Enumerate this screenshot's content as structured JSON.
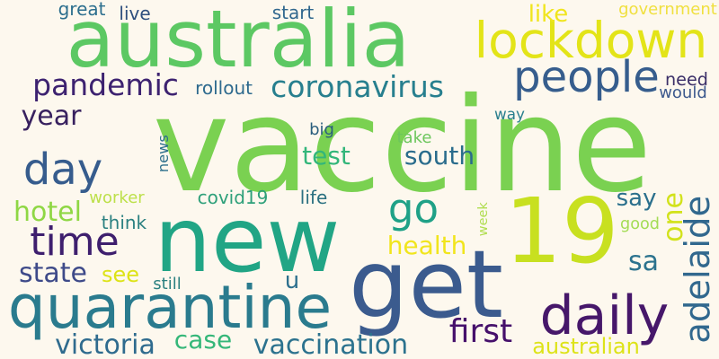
{
  "background": "#fdf8ee",
  "words": [
    {
      "text": "vaccine",
      "color": "#7ad151"
    },
    {
      "text": "australia",
      "color": "#5cc863"
    },
    {
      "text": "new",
      "color": "#21a585"
    },
    {
      "text": "get",
      "color": "#3b5b8e"
    },
    {
      "text": "19",
      "color": "#c8e020"
    },
    {
      "text": "lockdown",
      "color": "#e3e418"
    },
    {
      "text": "quarantine",
      "color": "#2a7b8e"
    },
    {
      "text": "daily",
      "color": "#46176a"
    },
    {
      "text": "time",
      "color": "#3e1f6e"
    },
    {
      "text": "people",
      "color": "#365d8d"
    },
    {
      "text": "pandemic",
      "color": "#3d2270"
    },
    {
      "text": "coronavirus",
      "color": "#277f8e"
    },
    {
      "text": "day",
      "color": "#365c8d"
    },
    {
      "text": "go",
      "color": "#1fa187"
    },
    {
      "text": "adelaide",
      "color": "#31688e"
    },
    {
      "text": "first",
      "color": "#46106b"
    },
    {
      "text": "vaccination",
      "color": "#2c728e"
    },
    {
      "text": "victoria",
      "color": "#2f6b8e"
    },
    {
      "text": "state",
      "color": "#3e4a89"
    },
    {
      "text": "year",
      "color": "#38215f"
    },
    {
      "text": "south",
      "color": "#2a6c8c"
    },
    {
      "text": "test",
      "color": "#32b67a"
    },
    {
      "text": "health",
      "color": "#f1e51d"
    },
    {
      "text": "hotel",
      "color": "#8fd744"
    },
    {
      "text": "case",
      "color": "#35b779"
    },
    {
      "text": "one",
      "color": "#d2e21b"
    },
    {
      "text": "sa",
      "color": "#2c738e"
    },
    {
      "text": "australian",
      "color": "#dde318"
    },
    {
      "text": "see",
      "color": "#dde318"
    },
    {
      "text": "u",
      "color": "#2d708e"
    },
    {
      "text": "need",
      "color": "#3b2f68"
    },
    {
      "text": "like",
      "color": "#f0e51d"
    },
    {
      "text": "say",
      "color": "#2a6f8c"
    },
    {
      "text": "rollout",
      "color": "#2e6a8e"
    },
    {
      "text": "would",
      "color": "#3d5a8e"
    },
    {
      "text": "way",
      "color": "#2a7f8e"
    },
    {
      "text": "great",
      "color": "#2d6f8e"
    },
    {
      "text": "live",
      "color": "#2e4f7e"
    },
    {
      "text": "start",
      "color": "#31688e"
    },
    {
      "text": "government",
      "color": "#f0e040"
    },
    {
      "text": "big",
      "color": "#2b5e7e"
    },
    {
      "text": "take",
      "color": "#6cc65c"
    },
    {
      "text": "news",
      "color": "#2c6f8c"
    },
    {
      "text": "covid19",
      "color": "#2ea07a"
    },
    {
      "text": "life",
      "color": "#2a7080"
    },
    {
      "text": "worker",
      "color": "#bde04a"
    },
    {
      "text": "think",
      "color": "#2a8080"
    },
    {
      "text": "still",
      "color": "#2a8080"
    },
    {
      "text": "week",
      "color": "#b0dd50"
    },
    {
      "text": "good",
      "color": "#a4dc55"
    }
  ]
}
